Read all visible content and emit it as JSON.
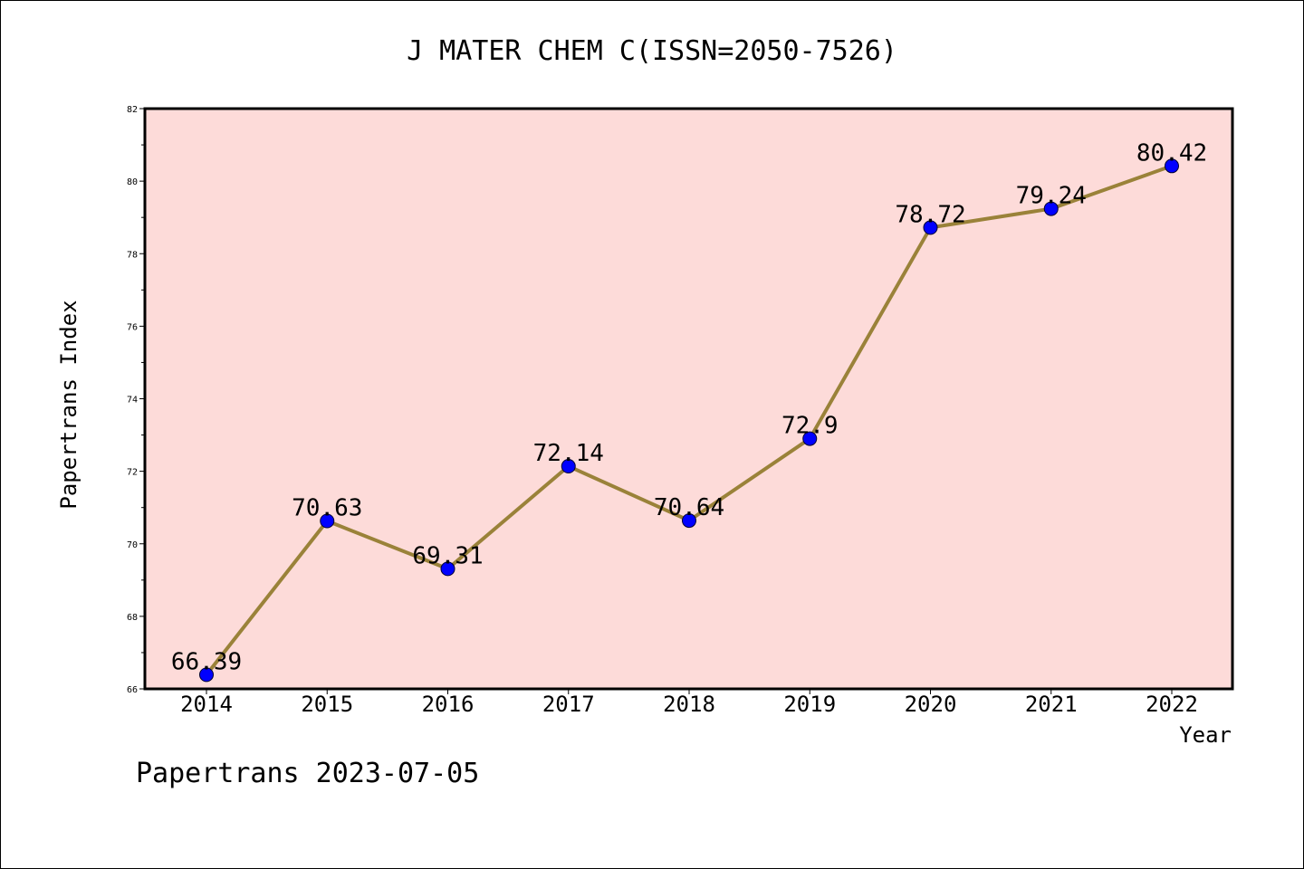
{
  "chart_data": {
    "type": "line",
    "title": "J MATER CHEM C(ISSN=2050-7526)",
    "xlabel": "Year",
    "ylabel": "Papertrans Index",
    "x": [
      "2014",
      "2015",
      "2016",
      "2017",
      "2018",
      "2019",
      "2020",
      "2021",
      "2022"
    ],
    "series": [
      {
        "values": [
          66.39,
          70.63,
          69.31,
          72.14,
          70.64,
          72.9,
          78.72,
          79.24,
          80.42
        ],
        "labels": [
          "66.39",
          "70.63",
          "69.31",
          "72.14",
          "70.64",
          "72.9",
          "78.72",
          "79.24",
          "80.42"
        ]
      }
    ],
    "ylim": [
      66,
      82
    ],
    "yticks": [
      "66",
      "68",
      "70",
      "72",
      "74",
      "76",
      "78",
      "80",
      "82"
    ],
    "grid": false,
    "legend": "none"
  },
  "footer": {
    "text": "Papertrans 2023-07-05"
  },
  "colors": {
    "plot_background": "#FDDBD9",
    "line": "#9A8239",
    "marker_fill": "#0000FF",
    "marker_edge": "#000033"
  }
}
